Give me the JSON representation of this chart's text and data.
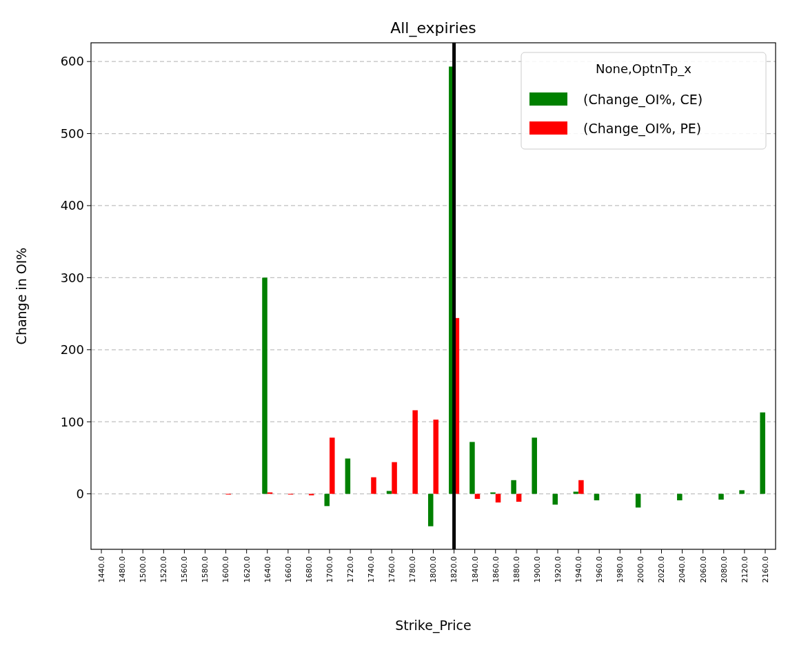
{
  "chart_data": {
    "type": "bar",
    "title": "All_expiries",
    "xlabel": "Strike_Price",
    "ylabel": "Change in OI%",
    "legend_title": "None,OptnTp_x",
    "categories": [
      "1440.0",
      "1480.0",
      "1500.0",
      "1520.0",
      "1560.0",
      "1580.0",
      "1600.0",
      "1620.0",
      "1640.0",
      "1660.0",
      "1680.0",
      "1700.0",
      "1720.0",
      "1740.0",
      "1760.0",
      "1780.0",
      "1800.0",
      "1820.0",
      "1840.0",
      "1860.0",
      "1880.0",
      "1900.0",
      "1920.0",
      "1940.0",
      "1960.0",
      "1980.0",
      "2000.0",
      "2020.0",
      "2040.0",
      "2060.0",
      "2080.0",
      "2120.0",
      "2160.0"
    ],
    "series": [
      {
        "name": " (Change_OI%, CE)",
        "color": "#008000",
        "values": [
          0,
          0,
          0,
          0,
          0,
          0,
          0,
          0,
          300,
          0,
          0,
          -17,
          49,
          0,
          4,
          0,
          -45,
          593,
          72,
          2,
          19,
          78,
          -15,
          3,
          -9,
          0,
          -19,
          0,
          -9,
          0,
          -8,
          5,
          113
        ]
      },
      {
        "name": " (Change_OI%, PE)",
        "color": "#ff0000",
        "values": [
          0,
          0,
          0,
          0,
          0,
          0,
          -1,
          0,
          2,
          -1,
          -2,
          78,
          0,
          23,
          44,
          116,
          103,
          244,
          -7,
          -12,
          -11,
          0,
          0,
          19,
          0,
          0,
          0,
          0,
          0,
          0,
          0,
          0,
          0
        ]
      }
    ],
    "ylim": [
      -77,
      626
    ],
    "yticks": [
      0,
      100,
      200,
      300,
      400,
      500,
      600
    ],
    "grid": "y",
    "legend": "top right",
    "ref_lines": [
      {
        "axis": "x",
        "value": "1820.0",
        "color": "#000000"
      }
    ]
  }
}
